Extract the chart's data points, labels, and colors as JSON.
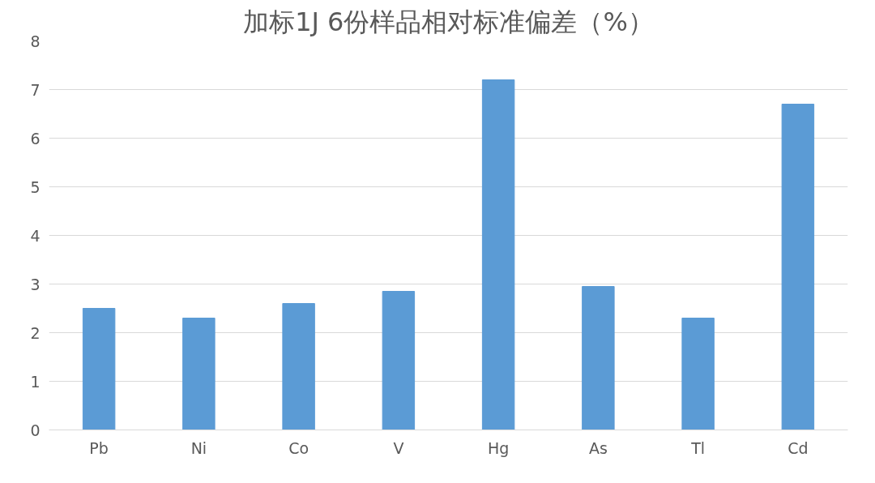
{
  "chart_data": {
    "type": "bar",
    "title": "加标1J 6份样品相对标准偏差（%）",
    "categories": [
      "Pb",
      "Ni",
      "Co",
      "V",
      "Hg",
      "As",
      "Tl",
      "Cd"
    ],
    "values": [
      2.5,
      2.3,
      2.6,
      2.85,
      7.2,
      2.95,
      2.3,
      6.7
    ],
    "color": "#5b9bd5",
    "ylim": [
      0,
      8
    ],
    "yticks": [
      0,
      1,
      2,
      3,
      4,
      5,
      6,
      7,
      8
    ],
    "grid": "y"
  }
}
